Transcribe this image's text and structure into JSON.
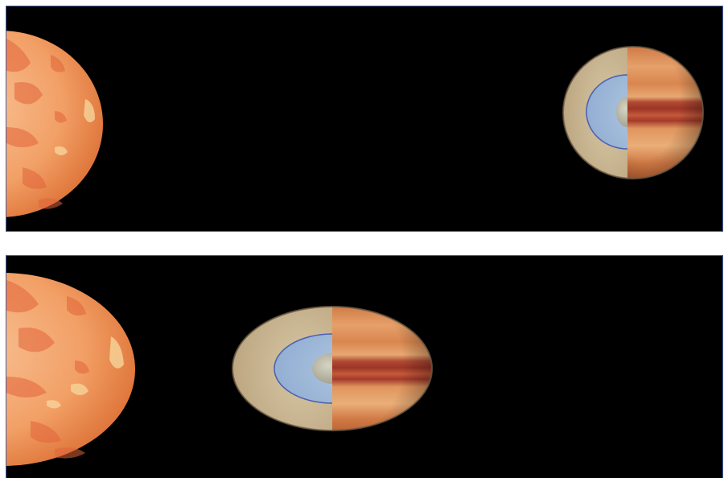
{
  "panels": [
    {
      "id": "top",
      "star": "sun",
      "planet": "hot-jupiter-cutaway",
      "planet_shape": "slightly-oblate"
    },
    {
      "id": "bottom",
      "star": "sun",
      "planet": "hot-jupiter-cutaway",
      "planet_shape": "tidally-elongated"
    }
  ],
  "colors": {
    "space": "#000000",
    "frame": "#3f5fa8",
    "star_base": "#f4a56a",
    "star_spots": "#e2643a",
    "star_faculae": "#f7d49a",
    "mantle": "#c9b48f",
    "ocean_layer": "#9db8d8",
    "ocean_border": "#4a5fb0",
    "core": "#b9b7a5",
    "band_light": "#e8a46a",
    "band_dark": "#a83a2a"
  }
}
